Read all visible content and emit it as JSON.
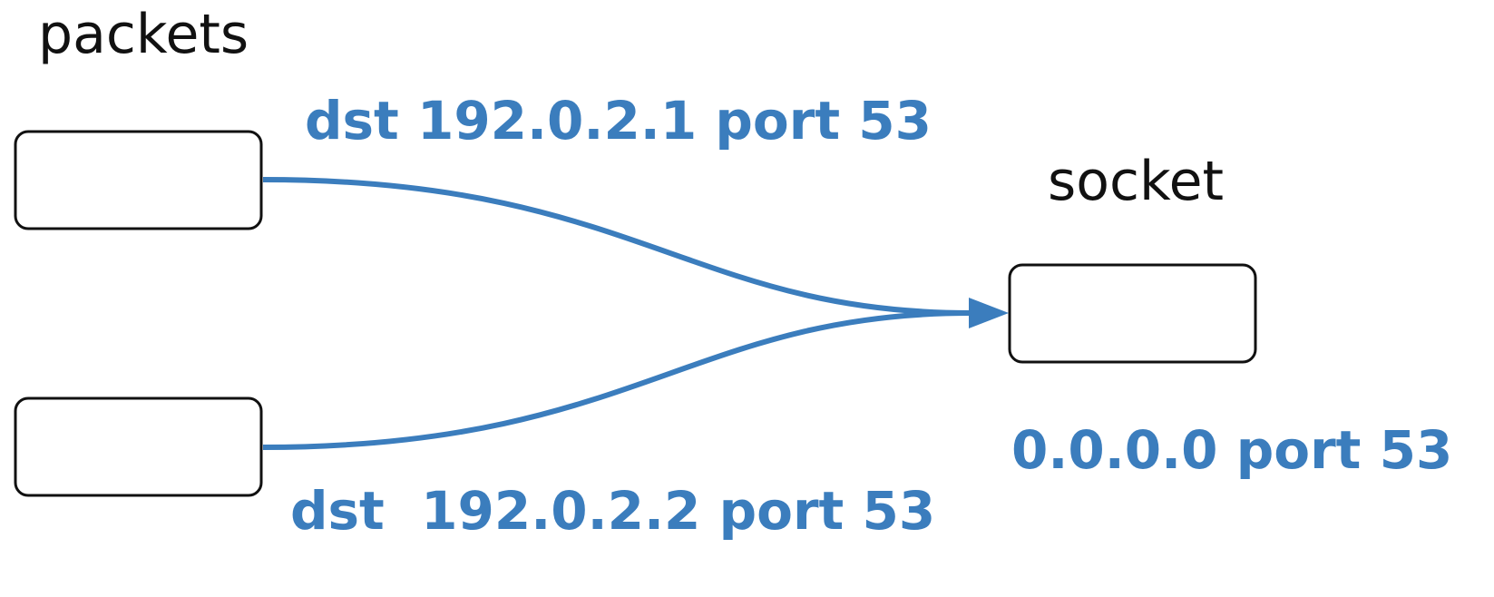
{
  "title_packets": "packets",
  "title_socket": "socket",
  "flows": [
    {
      "label": "dst 192.0.2.1 port 53"
    },
    {
      "label": "dst  192.0.2.2 port 53"
    }
  ],
  "socket_binding": "0.0.0.0 port 53",
  "colors": {
    "accent": "#3b7dbd",
    "outline": "#111111"
  }
}
